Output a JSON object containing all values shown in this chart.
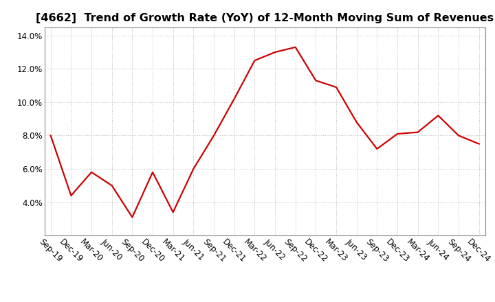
{
  "title": "[4662]  Trend of Growth Rate (YoY) of 12-Month Moving Sum of Revenues",
  "x_labels": [
    "Sep-19",
    "Dec-19",
    "Mar-20",
    "Jun-20",
    "Sep-20",
    "Dec-20",
    "Mar-21",
    "Jun-21",
    "Sep-21",
    "Dec-21",
    "Mar-22",
    "Jun-22",
    "Sep-22",
    "Dec-22",
    "Mar-23",
    "Jun-23",
    "Sep-23",
    "Dec-23",
    "Mar-24",
    "Jun-24",
    "Sep-24",
    "Dec-24"
  ],
  "y_values": [
    8.0,
    4.4,
    5.8,
    5.0,
    3.1,
    5.8,
    3.4,
    6.0,
    8.0,
    10.2,
    12.5,
    13.0,
    13.3,
    11.3,
    10.9,
    8.8,
    7.2,
    8.1,
    8.2,
    9.2,
    8.0,
    7.5
  ],
  "ylim": [
    2.0,
    14.5
  ],
  "yticks": [
    4.0,
    6.0,
    8.0,
    10.0,
    12.0,
    14.0
  ],
  "ytick_labels": [
    "4.0%",
    "6.0%",
    "8.0%",
    "10.0%",
    "12.0%",
    "14.0%"
  ],
  "line_color": "#cc0000",
  "line_width": 1.6,
  "background_color": "#ffffff",
  "grid_color": "#bbbbbb",
  "title_fontsize": 11.5,
  "tick_fontsize": 8.5,
  "title_color": "#000000"
}
